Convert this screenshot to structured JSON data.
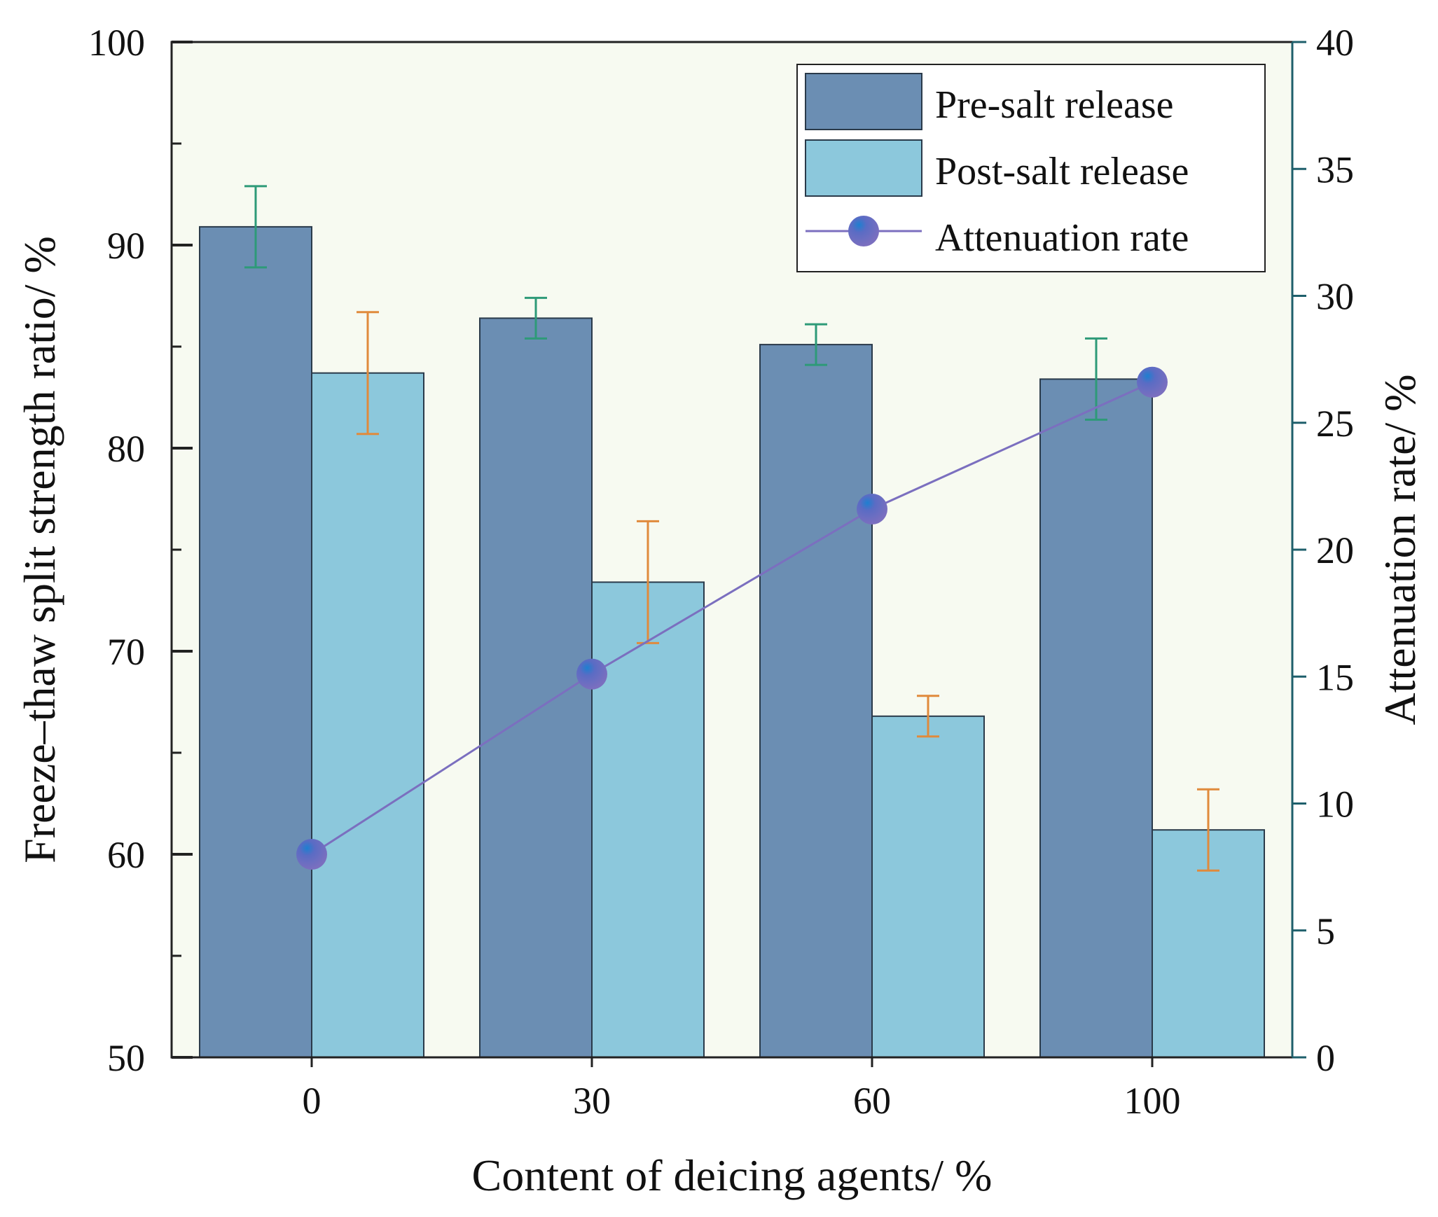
{
  "chart_data": {
    "type": "bar",
    "title": "",
    "xlabel": "Content of deicing agents/ %",
    "ylabel": "Freeze–thaw split strength ratio/ %",
    "y2label": "Attenuation rate/ %",
    "categories": [
      "0",
      "30",
      "60",
      "100"
    ],
    "ylim": [
      50,
      100
    ],
    "yticks": [
      "50",
      "60",
      "70",
      "80",
      "90",
      "100"
    ],
    "y2lim": [
      0,
      40
    ],
    "y2ticks": [
      "0",
      "5",
      "10",
      "15",
      "20",
      "25",
      "30",
      "35",
      "40"
    ],
    "series": [
      {
        "name": "Pre-salt release",
        "type": "bar",
        "values": [
          90.9,
          86.4,
          85.1,
          83.4
        ],
        "errors": [
          2.0,
          1.0,
          1.0,
          2.0
        ],
        "color": "#6B8EB3",
        "error_color": "#2E9A78"
      },
      {
        "name": "Post-salt release",
        "type": "bar",
        "values": [
          83.7,
          73.4,
          66.8,
          61.2
        ],
        "errors": [
          3.0,
          3.0,
          1.0,
          2.0
        ],
        "color": "#8CC8DC",
        "error_color": "#E08A3C"
      },
      {
        "name": "Attenuation rate",
        "type": "line",
        "axis": "right",
        "values": [
          8.0,
          15.1,
          21.6,
          26.6
        ],
        "color": "#7B6FBF"
      }
    ],
    "plot_background": "#F7FAF1",
    "legend": "top-right"
  }
}
